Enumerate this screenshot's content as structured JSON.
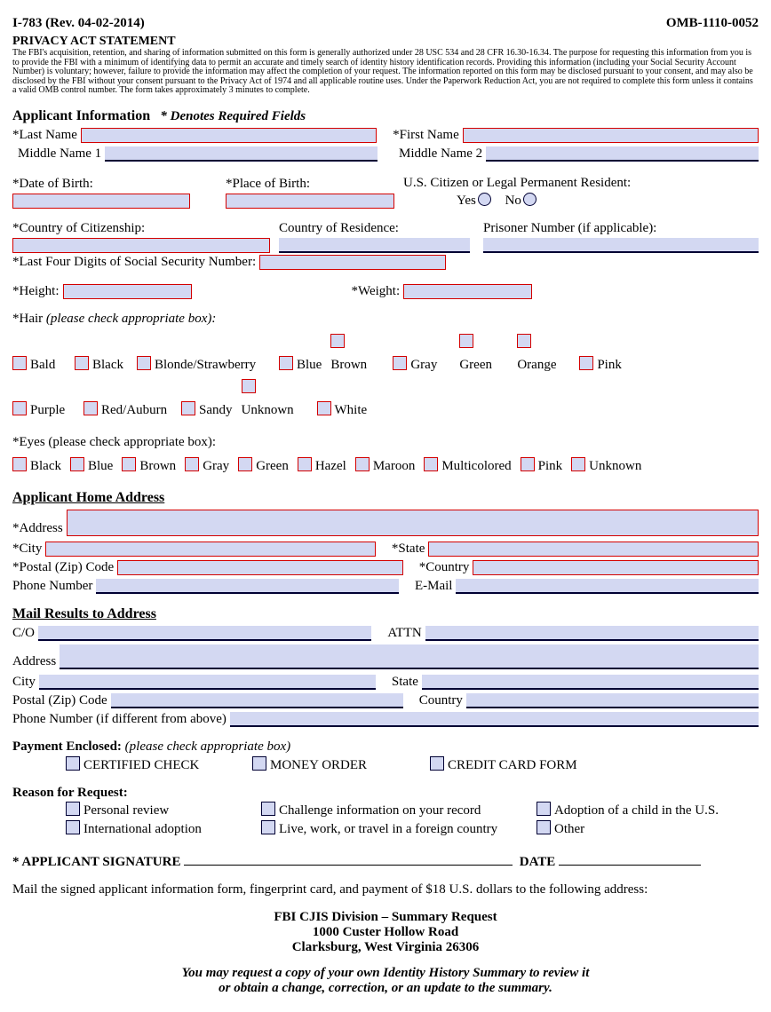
{
  "header": {
    "form_no": "I-783 (Rev. 04-02-2014)",
    "omb": "OMB-1110-0052"
  },
  "privacy": {
    "title": "PRIVACY ACT STATEMENT",
    "text": "The FBI's acquisition, retention, and sharing of information submitted on this form is generally authorized under 28 USC 534 and 28 CFR 16.30-16.34.  The purpose for requesting this information from you is to provide the FBI with a minimum of identifying data to permit an accurate and timely search of identity history identification records. Providing this information (including your Social Security Account Number) is voluntary; however, failure to provide the information may affect the completion of your request. The information reported on this form may be disclosed pursuant to your consent, and may also be disclosed by the FBI without your consent pursuant to the Privacy Act of 1974 and all applicable routine uses. Under the Paperwork Reduction Act, you are not required to complete this form unless it contains a valid OMB control number. The form takes approximately 3 minutes to complete."
  },
  "app_info": {
    "title": "Applicant Information",
    "req_note": "*  Denotes Required Fields",
    "last_name": "*Last Name",
    "first_name": "*First Name",
    "mid1": "Middle Name 1",
    "mid2": "Middle Name 2",
    "dob": "*Date of Birth:",
    "pob": "*Place of Birth:",
    "citizen": "U.S. Citizen or Legal Permanent Resident:",
    "yes": "Yes",
    "no": "No",
    "coc": "*Country of Citizenship:",
    "cor": "Country of Residence:",
    "prisoner": "Prisoner Number (if applicable):",
    "ssn": "*Last Four Digits of Social Security Number:",
    "height": "*Height:",
    "weight": "*Weight:"
  },
  "hair": {
    "title": "*Hair",
    "note": "(please check appropriate box):",
    "opts": [
      "Bald",
      "Black",
      "Blonde/Strawberry",
      "Blue",
      "Brown",
      "Gray",
      "Green",
      "Orange",
      "Pink",
      "Purple",
      "Red/Auburn",
      "Sandy",
      "Unknown",
      "White"
    ]
  },
  "eyes": {
    "title": "*Eyes (please check appropriate box):",
    "opts": [
      "Black",
      "Blue",
      "Brown",
      "Gray",
      "Green",
      "Hazel",
      "Maroon",
      "Multicolored",
      "Pink",
      "Unknown"
    ]
  },
  "addr": {
    "title": "Applicant Home Address",
    "address": "*Address",
    "city": "*City",
    "state": "*State",
    "zip": "*Postal (Zip) Code",
    "country": "*Country",
    "phone": "Phone Number",
    "email": "E-Mail"
  },
  "mail": {
    "title": "Mail Results to Address",
    "co": "C/O",
    "attn": "ATTN",
    "address": "Address",
    "city": "City",
    "state": "State",
    "zip": "Postal (Zip) Code",
    "country": "Country",
    "phone": "Phone Number (if different from above)"
  },
  "payment": {
    "title": "Payment Enclosed:",
    "note": "(please check appropriate box)",
    "opts": [
      "CERTIFIED CHECK",
      "MONEY ORDER",
      "CREDIT CARD FORM"
    ]
  },
  "reason": {
    "title": "Reason for Request:",
    "opts": [
      "Personal review",
      "Challenge information on your record",
      "Adoption of a child in the U.S.",
      "International adoption",
      "Live, work, or travel in a foreign country",
      "Other"
    ]
  },
  "sig": {
    "label": "* APPLICANT SIGNATURE",
    "date": "DATE"
  },
  "footer": {
    "instr": "Mail the signed applicant information form, fingerprint card, and payment of $18 U.S. dollars to the following address:",
    "addr1": "FBI CJIS Division – Summary Request",
    "addr2": "1000 Custer Hollow Road",
    "addr3": "Clarksburg, West Virginia 26306",
    "note1": "You may request a copy of your own Identity History Summary to review it",
    "note2": "or obtain a change, correction, or an update to the summary."
  }
}
